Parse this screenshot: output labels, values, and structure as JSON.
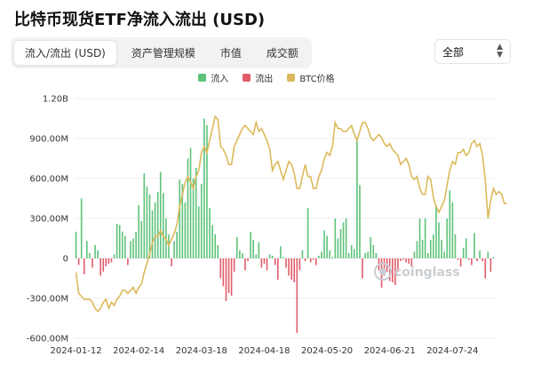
{
  "title": "比特币现货ETF净流入流出 (USD)",
  "tabs": [
    {
      "label": "流入/流出 (USD)",
      "active": true
    },
    {
      "label": "资产管理规模",
      "active": false
    },
    {
      "label": "市值",
      "active": false
    },
    {
      "label": "成交额",
      "active": false
    }
  ],
  "filter": {
    "selected": "全部"
  },
  "legend": [
    {
      "label": "流入",
      "color": "#5ec27a"
    },
    {
      "label": "流出",
      "color": "#e25c6a"
    },
    {
      "label": "BTC价格",
      "color": "#dcb95a"
    }
  ],
  "watermark": "coinglass",
  "chart_data": {
    "type": "bar",
    "ylim": [
      -600000000,
      1200000000
    ],
    "y_ticks": [
      {
        "value": 1200000000,
        "label": "1.20B"
      },
      {
        "value": 900000000,
        "label": "900.00M"
      },
      {
        "value": 600000000,
        "label": "600.00M"
      },
      {
        "value": 300000000,
        "label": "300.00M"
      },
      {
        "value": 0,
        "label": "0"
      },
      {
        "value": -300000000,
        "label": "-300.00M"
      },
      {
        "value": -600000000,
        "label": "-600.00M"
      }
    ],
    "x_ticks": [
      {
        "index": 0,
        "label": "2024-01-12"
      },
      {
        "index": 23,
        "label": "2024-02-14"
      },
      {
        "index": 46,
        "label": "2024-03-18"
      },
      {
        "index": 69,
        "label": "2024-04-18"
      },
      {
        "index": 92,
        "label": "2024-05-20"
      },
      {
        "index": 115,
        "label": "2024-06-21"
      },
      {
        "index": 138,
        "label": "2024-07-24"
      }
    ],
    "series": [
      {
        "name": "流入/流出",
        "values": [
          200,
          -50,
          450,
          -120,
          130,
          40,
          -70,
          100,
          60,
          -130,
          -100,
          -60,
          -40,
          -30,
          30,
          260,
          250,
          200,
          170,
          -50,
          130,
          150,
          200,
          400,
          280,
          640,
          540,
          480,
          360,
          420,
          500,
          650,
          490,
          300,
          180,
          -60,
          130,
          200,
          590,
          560,
          420,
          750,
          830,
          600,
          680,
          390,
          560,
          1050,
          1000,
          380,
          250,
          180,
          100,
          -150,
          -210,
          -320,
          -260,
          -280,
          -100,
          160,
          60,
          40,
          -90,
          -20,
          200,
          140,
          30,
          120,
          -70,
          -40,
          -90,
          30,
          20,
          -50,
          -160,
          90,
          10,
          -70,
          -130,
          -160,
          -180,
          -560,
          -90,
          60,
          -20,
          380,
          -30,
          -10,
          -50,
          20,
          50,
          210,
          170,
          60,
          10,
          300,
          150,
          220,
          270,
          300,
          40,
          100,
          70,
          890,
          550,
          -150,
          40,
          50,
          160,
          100,
          40,
          -90,
          -220,
          -130,
          -100,
          -170,
          -180,
          -200,
          -100,
          -20,
          -10,
          -30,
          -40,
          -60,
          50,
          130,
          300,
          140,
          300,
          40,
          140,
          180,
          400,
          270,
          140,
          50,
          300,
          510,
          420,
          180,
          -10,
          -60,
          80,
          150,
          -10,
          -50,
          190,
          -20,
          60,
          -20,
          -150,
          50,
          -100,
          10
        ]
      },
      {
        "name": "BTC价格",
        "values": [
          46,
          42.5,
          42,
          41.5,
          41.5,
          41.5,
          41,
          40,
          39.5,
          40,
          41,
          41.5,
          40,
          41,
          40.5,
          41.5,
          42,
          43,
          43,
          42.5,
          43,
          43.5,
          42.5,
          43.5,
          44,
          46,
          47.5,
          49,
          51,
          52,
          52,
          53,
          52,
          51.5,
          50.5,
          51.5,
          52.5,
          54,
          57,
          59,
          61,
          62,
          61,
          60,
          62,
          63,
          66,
          67,
          66,
          68,
          70,
          72,
          71.5,
          67,
          66.5,
          65.5,
          64,
          64,
          67,
          68,
          69,
          70,
          70.5,
          70,
          69.5,
          69,
          71,
          69.5,
          70,
          69,
          68,
          66.5,
          63,
          64,
          64.5,
          63,
          61.5,
          63,
          64.5,
          64,
          62.5,
          60,
          60,
          62,
          64,
          62,
          62,
          60,
          60,
          62,
          63,
          65,
          66,
          65.5,
          67,
          71,
          70,
          70,
          69.5,
          69.5,
          70,
          70.5,
          69,
          68,
          69.5,
          71,
          71,
          70,
          68.5,
          68,
          68.5,
          69,
          68.5,
          67.5,
          67,
          67.5,
          66.5,
          66,
          65.5,
          64,
          64.5,
          65,
          64,
          62,
          61.5,
          62,
          60,
          59,
          59,
          62,
          61.5,
          58.5,
          57,
          56,
          57,
          58,
          60.5,
          63,
          64.5,
          64,
          66,
          66,
          66.5,
          65.5,
          66,
          67.5,
          68,
          67,
          67.5,
          65.5,
          61.5,
          55,
          58,
          60,
          59,
          59.5,
          59,
          57.5,
          57.5
        ]
      }
    ],
    "price_range_k": [
      35,
      75
    ]
  }
}
